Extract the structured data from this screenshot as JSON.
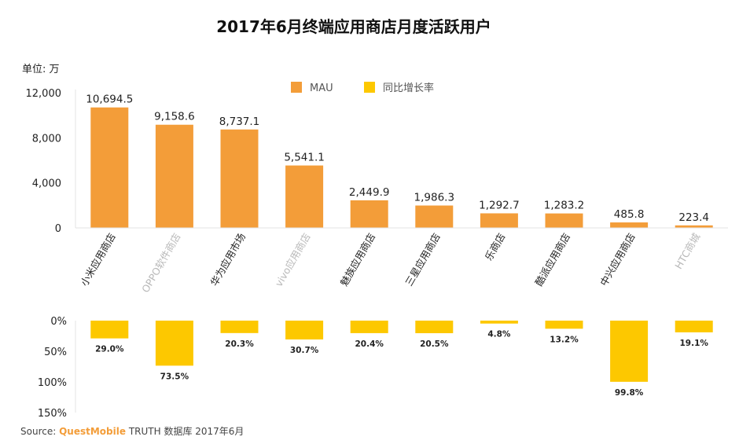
{
  "title": "2017年6月终端应用商店月度活跃用户",
  "unit_label": "单位: 万",
  "legend": {
    "mau": "MAU",
    "growth": "同比增长率"
  },
  "colors": {
    "mau": "#f39d39",
    "growth": "#fdc800",
    "axis": "#e3e3e3"
  },
  "source": {
    "prefix": "Source:",
    "brand": "QuestMobile",
    "suffix": "TRUTH 数据库 2017年6月"
  },
  "chart_data": [
    {
      "type": "bar",
      "series": [
        {
          "name": "MAU",
          "values": [
            10694.5,
            9158.6,
            8737.1,
            5541.1,
            2449.9,
            1986.3,
            1292.7,
            1283.2,
            485.8,
            223.4
          ],
          "labels": [
            "10,694.5",
            "9,158.6",
            "8,737.1",
            "5,541.1",
            "2,449.9",
            "1,986.3",
            "1,292.7",
            "1,283.2",
            "485.8",
            "223.4"
          ]
        }
      ],
      "categories": [
        "小米应用商店",
        "OPPO软件商店",
        "华为应用市场",
        "vivo应用商店",
        "魅族应用商店",
        "三星应用商店",
        "乐商店",
        "酷派应用商店",
        "中兴应用商店",
        "HTC商城"
      ],
      "light_categories": [
        1,
        3,
        9
      ],
      "ylim": [
        0,
        12000
      ],
      "yticks": [
        "12,000",
        "8,000",
        "4,000",
        "0"
      ],
      "ytick_values": [
        12000,
        8000,
        4000,
        0
      ]
    },
    {
      "type": "bar",
      "series": [
        {
          "name": "同比增长率",
          "values": [
            29.0,
            73.5,
            20.3,
            30.7,
            20.4,
            20.5,
            4.8,
            13.2,
            99.8,
            19.1
          ],
          "labels": [
            "29.0%",
            "73.5%",
            "20.3%",
            "30.7%",
            "20.4%",
            "20.5%",
            "4.8%",
            "13.2%",
            "99.8%",
            "19.1%"
          ]
        }
      ],
      "ylim": [
        0,
        150
      ],
      "yticks": [
        "0%",
        "50%",
        "100%",
        "150%"
      ],
      "ytick_values": [
        0,
        50,
        100,
        150
      ],
      "direction": "downward"
    }
  ]
}
